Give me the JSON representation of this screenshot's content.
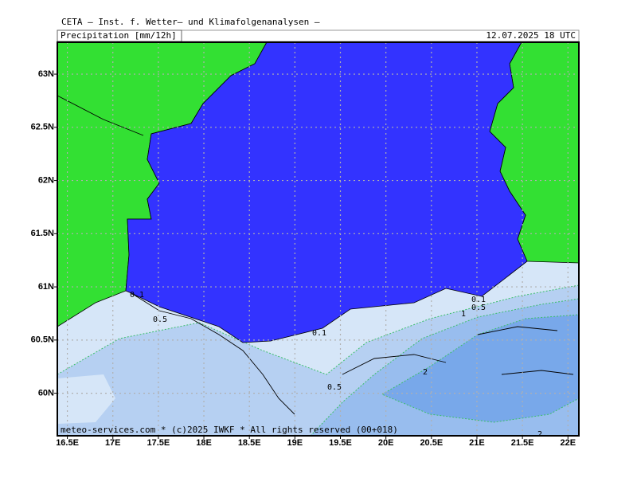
{
  "header": {
    "title": "CETA — Inst. f. Wetter— und Klimafolgenanalysen —",
    "field": "Precipitation [mm/12h]",
    "time": "12.07.2025 18 UTC"
  },
  "map": {
    "lonlim": [
      16.39,
      22.12
    ],
    "latlim": [
      59.6,
      63.3
    ],
    "lon_ticks": [
      {
        "value": 16.5,
        "label": "16.5E"
      },
      {
        "value": 17,
        "label": "17E"
      },
      {
        "value": 17.5,
        "label": "17.5E"
      },
      {
        "value": 18,
        "label": "18E"
      },
      {
        "value": 18.5,
        "label": "18.5E"
      },
      {
        "value": 19,
        "label": "19E"
      },
      {
        "value": 19.5,
        "label": "19.5E"
      },
      {
        "value": 20,
        "label": "20E"
      },
      {
        "value": 20.5,
        "label": "20.5E"
      },
      {
        "value": 21,
        "label": "21E"
      },
      {
        "value": 21.5,
        "label": "21.5E"
      },
      {
        "value": 22,
        "label": "22E"
      }
    ],
    "lat_ticks": [
      {
        "value": 60,
        "label": "60N"
      },
      {
        "value": 60.5,
        "label": "60.5N"
      },
      {
        "value": 61,
        "label": "61N"
      },
      {
        "value": 61.5,
        "label": "61.5N"
      },
      {
        "value": 62,
        "label": "62N"
      },
      {
        "value": 62.5,
        "label": "62.5N"
      },
      {
        "value": 63,
        "label": "63N"
      }
    ],
    "contour_labels": [
      "0.1",
      "0.5",
      "0.1",
      "0.5",
      "0.1",
      "0.5",
      "1",
      "2",
      "2"
    ]
  },
  "footer": "meteo-services.com * (c)2025 IWKF * All rights reserved (00+018)"
}
